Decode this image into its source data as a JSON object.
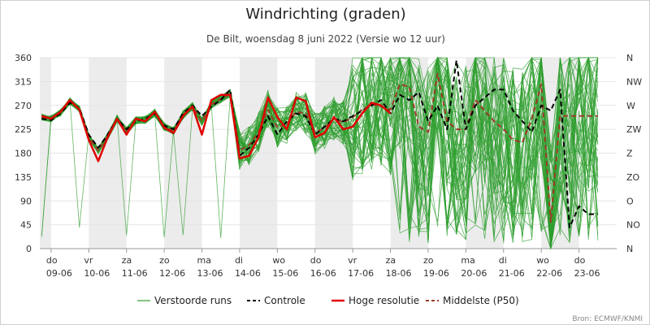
{
  "chart_data": {
    "type": "line",
    "title": "Windrichting (graden)",
    "subtitle": "De Bilt, woensdag 8 juni 2022 (Versie wo 12 uur)",
    "credits": "Bron: ECMWF/KNMI",
    "xlabel": "",
    "ylabel": "",
    "ylim": [
      0,
      360
    ],
    "yticks": [
      "0",
      "45",
      "90",
      "135",
      "180",
      "225",
      "270",
      "315",
      "360"
    ],
    "yticks_right": [
      "N",
      "NO",
      "O",
      "ZO",
      "Z",
      "ZW",
      "W",
      "NW",
      "N"
    ],
    "xlim": [
      8.7,
      24.0
    ],
    "x_tick_days": [
      {
        "x": 9,
        "weekday": "do",
        "date": "09-06"
      },
      {
        "x": 10,
        "weekday": "vr",
        "date": "10-06"
      },
      {
        "x": 11,
        "weekday": "za",
        "date": "11-06"
      },
      {
        "x": 12,
        "weekday": "zo",
        "date": "12-06"
      },
      {
        "x": 13,
        "weekday": "ma",
        "date": "13-06"
      },
      {
        "x": 14,
        "weekday": "di",
        "date": "14-06"
      },
      {
        "x": 15,
        "weekday": "wo",
        "date": "15-06"
      },
      {
        "x": 16,
        "weekday": "do",
        "date": "16-06"
      },
      {
        "x": 17,
        "weekday": "vr",
        "date": "17-06"
      },
      {
        "x": 18,
        "weekday": "za",
        "date": "18-06"
      },
      {
        "x": 19,
        "weekday": "zo",
        "date": "19-06"
      },
      {
        "x": 20,
        "weekday": "ma",
        "date": "20-06"
      },
      {
        "x": 21,
        "weekday": "di",
        "date": "21-06"
      },
      {
        "x": 22,
        "weekday": "wo",
        "date": "22-06"
      },
      {
        "x": 23,
        "weekday": "do",
        "date": "23-06"
      }
    ],
    "shaded_bands": [
      [
        8.7,
        9.0
      ],
      [
        10.0,
        11.0
      ],
      [
        12.0,
        13.0
      ],
      [
        14.0,
        15.0
      ],
      [
        16.0,
        17.0
      ],
      [
        18.0,
        19.0
      ],
      [
        20.0,
        21.0
      ],
      [
        22.0,
        23.0
      ]
    ],
    "grid": true,
    "legend_position": "bottom",
    "colors": {
      "ensemble": "#2e9e2e",
      "control": "#000000",
      "high_res": "#e00000",
      "median": "#a03a2a",
      "band": "#ececec",
      "grid": "#e6e6e6"
    },
    "series": [
      {
        "name": "Hoge resolutie",
        "style": "high_res",
        "x": [
          8.75,
          9.0,
          9.25,
          9.5,
          9.75,
          10.0,
          10.25,
          10.5,
          10.75,
          11.0,
          11.25,
          11.5,
          11.75,
          12.0,
          12.25,
          12.5,
          12.75,
          13.0,
          13.25,
          13.5,
          13.75,
          14.0,
          14.25,
          14.5,
          14.75,
          15.0,
          15.25,
          15.5,
          15.75,
          16.0,
          16.25,
          16.5,
          16.75,
          17.0,
          17.25,
          17.5,
          17.75,
          18.0
        ],
        "values": [
          250,
          245,
          258,
          280,
          262,
          205,
          165,
          210,
          245,
          215,
          245,
          240,
          258,
          228,
          218,
          250,
          268,
          215,
          280,
          290,
          290,
          170,
          175,
          210,
          285,
          248,
          225,
          285,
          278,
          210,
          218,
          248,
          225,
          230,
          255,
          275,
          270,
          255
        ]
      },
      {
        "name": "Controle",
        "style": "control",
        "x": [
          8.75,
          9.0,
          9.25,
          9.5,
          9.75,
          10.0,
          10.25,
          10.5,
          10.75,
          11.0,
          11.25,
          11.5,
          11.75,
          12.0,
          12.25,
          12.5,
          12.75,
          13.0,
          13.25,
          13.5,
          13.75,
          14.0,
          14.25,
          14.5,
          14.75,
          15.0,
          15.25,
          15.5,
          15.75,
          16.0,
          16.25,
          16.5,
          16.75,
          17.0,
          17.25,
          17.5,
          17.75,
          18.0,
          18.25,
          18.5,
          18.75,
          19.0,
          19.25,
          19.5,
          19.75,
          20.0,
          20.25,
          20.5,
          20.75,
          21.0,
          21.25,
          21.5,
          21.75,
          22.0,
          22.25,
          22.5,
          22.75,
          23.0,
          23.25,
          23.5
        ],
        "values": [
          245,
          242,
          255,
          275,
          265,
          215,
          190,
          215,
          245,
          225,
          240,
          245,
          255,
          232,
          225,
          255,
          270,
          250,
          268,
          280,
          300,
          175,
          190,
          215,
          250,
          215,
          240,
          255,
          250,
          215,
          230,
          245,
          240,
          250,
          260,
          270,
          280,
          255,
          290,
          280,
          295,
          240,
          270,
          225,
          355,
          225,
          270,
          285,
          300,
          300,
          260,
          240,
          220,
          270,
          260,
          300,
          40,
          80,
          65,
          65
        ]
      },
      {
        "name": "Middelste (P50)",
        "style": "median",
        "x": [
          8.75,
          9.0,
          9.25,
          9.5,
          9.75,
          10.0,
          10.25,
          10.5,
          10.75,
          11.0,
          11.25,
          11.5,
          11.75,
          12.0,
          12.25,
          12.5,
          12.75,
          13.0,
          13.25,
          13.5,
          13.75,
          14.0,
          14.25,
          14.5,
          14.75,
          15.0,
          15.25,
          15.5,
          15.75,
          16.0,
          16.25,
          16.5,
          16.75,
          17.0,
          17.25,
          17.5,
          17.75,
          18.0,
          18.25,
          18.5,
          18.75,
          19.0,
          19.25,
          19.5,
          19.75,
          20.0,
          20.25,
          20.5,
          20.75,
          21.0,
          21.25,
          21.5,
          21.75,
          22.0,
          22.25,
          22.5,
          22.75,
          23.0,
          23.25,
          23.5
        ],
        "values": [
          248,
          245,
          256,
          278,
          263,
          210,
          185,
          212,
          245,
          222,
          242,
          243,
          256,
          230,
          222,
          252,
          268,
          240,
          272,
          282,
          292,
          185,
          195,
          220,
          262,
          228,
          235,
          258,
          255,
          218,
          228,
          245,
          238,
          248,
          262,
          272,
          268,
          262,
          310,
          305,
          230,
          220,
          330,
          240,
          225,
          225,
          280,
          260,
          240,
          225,
          205,
          200,
          245,
          310,
          50,
          250,
          250,
          250,
          250,
          250
        ]
      }
    ],
    "ensemble_note": "about 50 perturbed runs, generated in script around the median",
    "legend": [
      {
        "label": "Verstoorde runs",
        "style": "ensemble"
      },
      {
        "label": "Controle",
        "style": "control"
      },
      {
        "label": "Hoge resolutie",
        "style": "high_res"
      },
      {
        "label": "Middelste (P50)",
        "style": "median"
      }
    ]
  }
}
